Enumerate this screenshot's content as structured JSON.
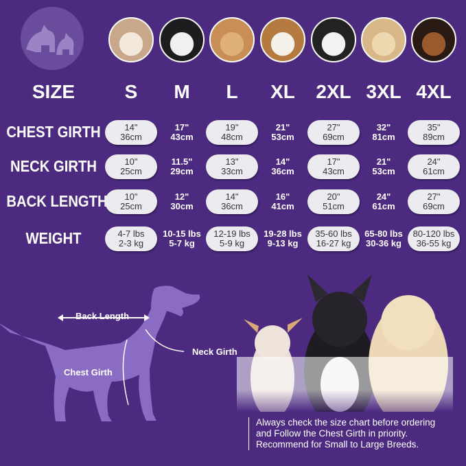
{
  "header": {
    "size_label": "SIZE",
    "sizes": [
      "S",
      "M",
      "L",
      "XL",
      "2XL",
      "3XL",
      "4XL"
    ]
  },
  "rows": [
    {
      "label": "CHEST GIRTH",
      "values": [
        [
          "14\"",
          "36cm"
        ],
        [
          "17\"",
          "43cm"
        ],
        [
          "19\"",
          "48cm"
        ],
        [
          "21\"",
          "53cm"
        ],
        [
          "27\"",
          "69cm"
        ],
        [
          "32\"",
          "81cm"
        ],
        [
          "35\"",
          "89cm"
        ]
      ]
    },
    {
      "label": "NECK GIRTH",
      "values": [
        [
          "10\"",
          "25cm"
        ],
        [
          "11.5\"",
          "29cm"
        ],
        [
          "13\"",
          "33cm"
        ],
        [
          "14\"",
          "36cm"
        ],
        [
          "17\"",
          "43cm"
        ],
        [
          "21\"",
          "53cm"
        ],
        [
          "24\"",
          "61cm"
        ]
      ]
    },
    {
      "label": "BACK LENGTH",
      "values": [
        [
          "10\"",
          "25cm"
        ],
        [
          "12\"",
          "30cm"
        ],
        [
          "14\"",
          "36cm"
        ],
        [
          "16\"",
          "41cm"
        ],
        [
          "20\"",
          "51cm"
        ],
        [
          "24\"",
          "61cm"
        ],
        [
          "27\"",
          "69cm"
        ]
      ]
    },
    {
      "label": "WEIGHT",
      "values": [
        [
          "4-7 lbs",
          "2-3 kg"
        ],
        [
          "10-15 lbs",
          "5-7 kg"
        ],
        [
          "12-19 lbs",
          "5-9 kg"
        ],
        [
          "19-28 lbs",
          "9-13 kg"
        ],
        [
          "35-60 lbs",
          "16-27 kg"
        ],
        [
          "65-80 lbs",
          "30-36 kg"
        ],
        [
          "80-120 lbs",
          "36-55 kg"
        ]
      ]
    }
  ],
  "diagram": {
    "back_length": "Back Length",
    "neck_girth": "Neck Girth",
    "chest_girth": "Chest Girth"
  },
  "note": [
    "Always check the size chart before ordering",
    "and Follow the Chest Girth in priority.",
    "Recommend for Small to Large Breeds."
  ],
  "colors": {
    "background": "#4b2a80",
    "silhouette": "#8a6cc4",
    "pill": "#ececf0"
  },
  "icons": {
    "logo": "dog-cat-logo-icon",
    "avatars": [
      "shih-tzu",
      "boston-terrier",
      "cocker-spaniel",
      "beagle",
      "border-collie",
      "labrador",
      "doberman"
    ]
  }
}
